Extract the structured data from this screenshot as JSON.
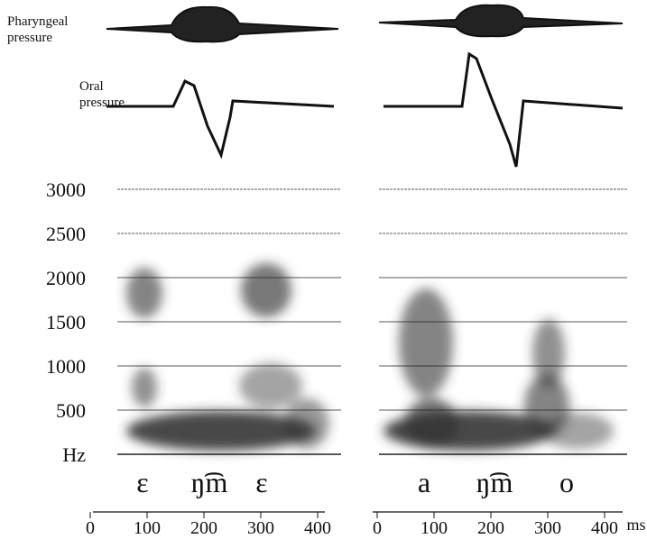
{
  "chart_data": [
    {
      "type": "spectrogram",
      "trace_labels": [
        "Pharyngeal pressure",
        "Oral pressure"
      ],
      "segments": [
        "ɛ",
        "ŋ͡m",
        "ɛ"
      ],
      "ylim": [
        0,
        3000
      ],
      "yticks": [
        {
          "value": 0,
          "label": "Hz"
        },
        500,
        1000,
        1500,
        2000,
        2500,
        3000
      ],
      "xlim": [
        0,
        450
      ],
      "xticks": [
        0,
        100,
        200,
        300,
        400
      ]
    },
    {
      "type": "spectrogram",
      "segments": [
        "a",
        "ŋ͡m",
        "o"
      ],
      "ylim": [
        0,
        3000
      ],
      "xlim": [
        0,
        430
      ],
      "xticks": [
        0,
        100,
        200,
        300,
        400
      ],
      "xlabel": "ms"
    }
  ]
}
